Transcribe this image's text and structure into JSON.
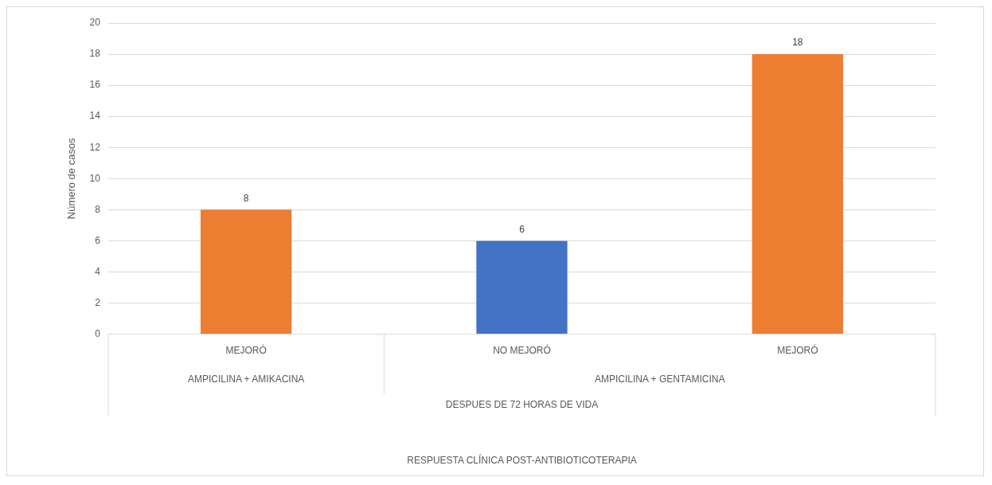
{
  "chart_data": {
    "type": "bar",
    "ylabel": "Número de casos",
    "categories": [
      "MEJORÓ",
      "NO MEJORÓ",
      "MEJORÓ"
    ],
    "values": [
      8,
      6,
      18
    ],
    "colors": [
      "#ed7d31",
      "#4472c4",
      "#ed7d31"
    ],
    "annotations": [
      "AMPICILINA + AMIKACINA",
      "AMPICILINA + GENTAMICINA",
      "DESPUES DE 72 HORAS DE VIDA",
      "RESPUESTA CLÍNICA POST-ANTIBIOTICOTERAPIA"
    ],
    "ylim": [
      0,
      20
    ],
    "yticks": [
      0,
      2,
      4,
      6,
      8,
      10,
      12,
      14,
      16,
      18,
      20
    ],
    "grid": "y",
    "data_labels": true,
    "legend": false
  }
}
